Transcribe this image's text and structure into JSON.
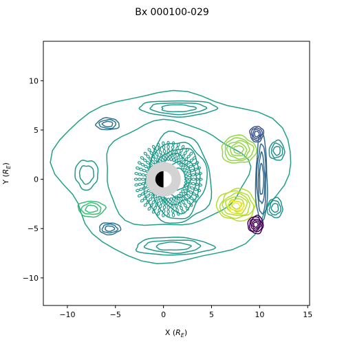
{
  "chart_data": {
    "type": "contour",
    "title": "Bx 000100-029",
    "xlabel": "X (R_E)",
    "ylabel": "Y (R_E)",
    "xlim": [
      -12.5,
      15.2
    ],
    "ylim": [
      -12.8,
      14.0
    ],
    "xticks": [
      -10,
      -5,
      0,
      5,
      10,
      15
    ],
    "yticks": [
      -10,
      -5,
      0,
      5,
      10
    ],
    "xtick_labels": [
      "−10",
      "−5",
      "0",
      "5",
      "10",
      "15"
    ],
    "ytick_labels": [
      "−10",
      "−5",
      "0",
      "5",
      "10"
    ],
    "grid": false,
    "legend": "none",
    "colormap": "viridis",
    "earth": {
      "center": [
        0,
        0
      ],
      "radius": 0.85,
      "day_color": "#ffffff",
      "night_color": "#000000",
      "ring_outer_radius": 1.8,
      "ring_color": "#d3d3d3"
    },
    "contour_regions": [
      {
        "name": "outer-envelope",
        "level": 0.05,
        "color": "#1fa187",
        "center": [
          1.0,
          0.5
        ],
        "rx": 12.0,
        "ry": 8.6,
        "rings": 2
      },
      {
        "name": "inner-annulus",
        "level": 0.15,
        "color": "#1f9a8a",
        "center": [
          1.5,
          0.0
        ],
        "rx": 3.4,
        "ry": 4.6,
        "rings": 6
      },
      {
        "name": "dusk-high",
        "level": 0.55,
        "color": "#90d743",
        "center": [
          7.8,
          3.0
        ],
        "rx": 1.8,
        "ry": 1.4,
        "rings": 5
      },
      {
        "name": "dawn-high",
        "level": 0.75,
        "color": "#b5de2b",
        "center": [
          7.6,
          -2.6
        ],
        "rx": 2.0,
        "ry": 1.6,
        "rings": 6
      },
      {
        "name": "dawn-peak",
        "level": 0.9,
        "color": "#fde725",
        "center": [
          7.5,
          -2.8
        ],
        "rx": 0.8,
        "ry": 0.6,
        "rings": 2
      },
      {
        "name": "flank-low-north",
        "level": -0.8,
        "color": "#3b528b",
        "center": [
          9.7,
          4.6
        ],
        "rx": 0.7,
        "ry": 0.8,
        "rings": 4
      },
      {
        "name": "flank-low-band",
        "level": -0.6,
        "color": "#31688e",
        "center": [
          10.2,
          0.0
        ],
        "rx": 0.6,
        "ry": 4.5,
        "rings": 4
      },
      {
        "name": "flank-low-south",
        "level": -0.9,
        "color": "#440154",
        "center": [
          9.6,
          -4.6
        ],
        "rx": 0.8,
        "ry": 0.9,
        "rings": 5
      },
      {
        "name": "flank-east",
        "level": 0.2,
        "color": "#21918c",
        "center": [
          11.8,
          2.9
        ],
        "rx": 0.8,
        "ry": 1.0,
        "rings": 3
      },
      {
        "name": "flank-east-south",
        "level": 0.2,
        "color": "#21918c",
        "center": [
          11.6,
          -2.9
        ],
        "rx": 0.8,
        "ry": 1.0,
        "rings": 3
      },
      {
        "name": "north-arc",
        "level": 0.1,
        "color": "#1f9a8a",
        "center": [
          1.5,
          7.2
        ],
        "rx": 4.0,
        "ry": 0.8,
        "rings": 3
      },
      {
        "name": "south-arc",
        "level": 0.1,
        "color": "#1f9a8a",
        "center": [
          1.0,
          -6.8
        ],
        "rx": 4.0,
        "ry": 0.9,
        "rings": 3
      },
      {
        "name": "west-blob-north",
        "level": -0.2,
        "color": "#2c728e",
        "center": [
          -5.8,
          5.6
        ],
        "rx": 1.2,
        "ry": 0.6,
        "rings": 3
      },
      {
        "name": "west-blob-south",
        "level": -0.2,
        "color": "#2c728e",
        "center": [
          -5.6,
          -5.0
        ],
        "rx": 1.1,
        "ry": 0.6,
        "rings": 3
      },
      {
        "name": "west-mid",
        "level": 0.3,
        "color": "#3bbb75",
        "center": [
          -7.5,
          -3.0
        ],
        "rx": 1.4,
        "ry": 0.8,
        "rings": 3
      },
      {
        "name": "west-mid-north",
        "level": 0.1,
        "color": "#1f9a8a",
        "center": [
          -8.0,
          0.5
        ],
        "rx": 1.2,
        "ry": 1.5,
        "rings": 2
      }
    ]
  }
}
